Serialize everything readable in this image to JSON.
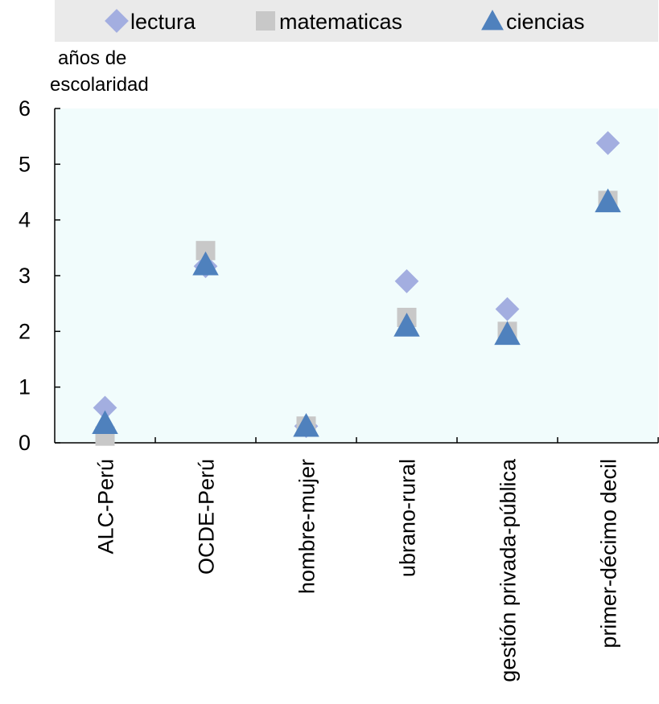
{
  "chart_data": {
    "type": "scatter",
    "ylabel_lines": [
      "años de",
      "escolaridad"
    ],
    "xlabel": "",
    "ylim": [
      0,
      6
    ],
    "yticks": [
      0,
      1,
      2,
      3,
      4,
      5,
      6
    ],
    "grid": false,
    "legend_position": "top",
    "categories": [
      "ALC-Perú",
      "OCDE-Perú",
      "hombre-mujer",
      "ubrano-rural",
      "gestión privada-pública",
      "primer-décimo decil"
    ],
    "series": [
      {
        "name": "lectura",
        "marker": "diamond",
        "color": "#a3aee0",
        "values": [
          0.63,
          3.17,
          0.3,
          2.9,
          2.4,
          5.38
        ]
      },
      {
        "name": "matematicas",
        "marker": "square",
        "color": "#c8c8c8",
        "values": [
          0.12,
          3.45,
          0.3,
          2.25,
          2.0,
          4.35
        ]
      },
      {
        "name": "ciencias",
        "marker": "triangle",
        "color": "#4f81bd",
        "values": [
          0.35,
          3.2,
          0.3,
          2.1,
          1.95,
          4.33
        ]
      }
    ]
  }
}
